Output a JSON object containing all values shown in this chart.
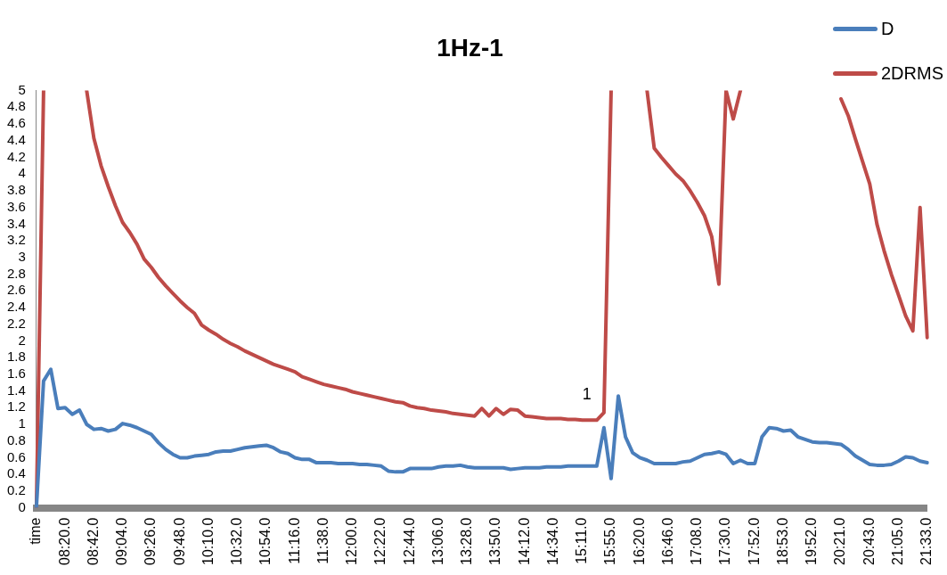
{
  "chart_data": {
    "type": "line",
    "title": "1Hz-1",
    "categories": [
      "time",
      null,
      null,
      null,
      "08:20.0",
      null,
      null,
      null,
      "08:42.0",
      null,
      null,
      null,
      "09:04.0",
      null,
      null,
      null,
      "09:26.0",
      null,
      null,
      null,
      "09:48.0",
      null,
      null,
      null,
      "10:10.0",
      null,
      null,
      null,
      "10:32.0",
      null,
      null,
      null,
      "10:54.0",
      null,
      null,
      null,
      "11:16.0",
      null,
      null,
      null,
      "11:38.0",
      null,
      null,
      null,
      "12:00.0",
      null,
      null,
      null,
      "12:22.0",
      null,
      null,
      null,
      "12:44.0",
      null,
      null,
      null,
      "13:06.0",
      null,
      null,
      null,
      "13:28.0",
      null,
      null,
      null,
      "13:50.0",
      null,
      null,
      null,
      "14:12.0",
      null,
      null,
      null,
      "14:34.0",
      null,
      null,
      null,
      "15:11.0",
      null,
      null,
      null,
      "15:55.0",
      null,
      null,
      null,
      "16:20.0",
      null,
      null,
      null,
      "16:46.0",
      null,
      null,
      null,
      "17:08.0",
      null,
      null,
      null,
      "17:30.0",
      null,
      null,
      null,
      "17:52.0",
      null,
      null,
      null,
      "18:53.0",
      null,
      null,
      null,
      "19:52.0",
      null,
      null,
      null,
      "20:21.0",
      null,
      null,
      null,
      "20:43.0",
      null,
      null,
      null,
      "21:05.0",
      null,
      null,
      null,
      "21:33.0"
    ],
    "series": [
      {
        "name": "D",
        "color": "#4a7ebb",
        "values": [
          0,
          1.52,
          1.66,
          1.19,
          1.2,
          1.12,
          1.17,
          1.0,
          0.94,
          0.95,
          0.92,
          0.94,
          1.01,
          0.99,
          0.96,
          0.92,
          0.88,
          0.78,
          0.7,
          0.64,
          0.6,
          0.6,
          0.62,
          0.63,
          0.64,
          0.67,
          0.68,
          0.68,
          0.7,
          0.72,
          0.73,
          0.74,
          0.75,
          0.72,
          0.67,
          0.65,
          0.6,
          0.58,
          0.58,
          0.54,
          0.54,
          0.54,
          0.53,
          0.53,
          0.53,
          0.52,
          0.52,
          0.51,
          0.5,
          0.44,
          0.43,
          0.43,
          0.47,
          0.47,
          0.47,
          0.47,
          0.49,
          0.5,
          0.5,
          0.51,
          0.49,
          0.48,
          0.48,
          0.48,
          0.48,
          0.48,
          0.46,
          0.47,
          0.48,
          0.48,
          0.48,
          0.49,
          0.49,
          0.49,
          0.5,
          0.5,
          0.5,
          0.5,
          0.5,
          0.96,
          0.35,
          1.34,
          0.85,
          0.66,
          0.6,
          0.57,
          0.53,
          0.53,
          0.53,
          0.53,
          0.55,
          0.56,
          0.6,
          0.64,
          0.65,
          0.67,
          0.64,
          0.53,
          0.57,
          0.53,
          0.53,
          0.85,
          0.96,
          0.95,
          0.92,
          0.93,
          0.85,
          0.82,
          0.79,
          0.78,
          0.78,
          0.77,
          0.76,
          0.7,
          0.62,
          0.57,
          0.52,
          0.51,
          0.51,
          0.52,
          0.56,
          0.61,
          0.6,
          0.56,
          0.54
        ]
      },
      {
        "name": "2DRMS",
        "color": "#be4b48",
        "values": [
          0,
          5.0,
          null,
          null,
          null,
          null,
          null,
          5.0,
          4.43,
          4.1,
          3.85,
          3.62,
          3.42,
          3.3,
          3.16,
          2.98,
          2.88,
          2.76,
          2.66,
          2.57,
          2.48,
          2.4,
          2.33,
          2.19,
          2.13,
          2.08,
          2.02,
          1.97,
          1.93,
          1.88,
          1.84,
          1.8,
          1.76,
          1.72,
          1.69,
          1.66,
          1.63,
          1.57,
          1.54,
          1.51,
          1.48,
          1.46,
          1.44,
          1.42,
          1.39,
          1.37,
          1.35,
          1.33,
          1.31,
          1.29,
          1.27,
          1.26,
          1.22,
          1.2,
          1.19,
          1.17,
          1.16,
          1.15,
          1.13,
          1.12,
          1.11,
          1.1,
          1.19,
          1.1,
          1.19,
          1.12,
          1.18,
          1.17,
          1.1,
          1.09,
          1.08,
          1.07,
          1.07,
          1.07,
          1.06,
          1.06,
          1.05,
          1.05,
          1.05,
          1.14,
          5.0,
          null,
          null,
          null,
          null,
          5.0,
          4.31,
          4.2,
          4.1,
          4.0,
          3.92,
          3.8,
          3.66,
          3.5,
          3.25,
          2.68,
          5.0,
          4.66,
          5.0,
          null,
          null,
          null,
          null,
          null,
          null,
          null,
          null,
          null,
          null,
          null,
          null,
          null,
          4.9,
          4.7,
          4.42,
          4.15,
          3.88,
          3.4,
          3.08,
          2.8,
          2.55,
          2.3,
          2.12,
          3.6,
          2.04
        ]
      }
    ],
    "ylim": [
      0,
      5
    ],
    "yticks": [
      0,
      0.2,
      0.4,
      0.6,
      0.8,
      1,
      1.2,
      1.4,
      1.6,
      1.8,
      2,
      2.2,
      2.4,
      2.6,
      2.8,
      3,
      3.2,
      3.4,
      3.6,
      3.8,
      4,
      4.2,
      4.4,
      4.6,
      4.8,
      5
    ],
    "grid": false,
    "legend": "top right",
    "marker": "none",
    "line_style": "solid",
    "annotations": [
      "1"
    ]
  }
}
